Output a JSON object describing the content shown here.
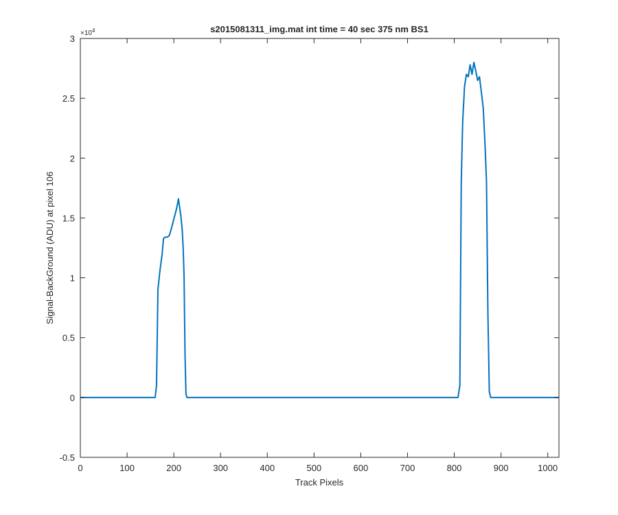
{
  "chart_data": {
    "type": "line",
    "title": "s2015081311_img.mat int time = 40 sec  375 nm BS1",
    "xlabel": "Track Pixels",
    "ylabel": "Signal-BackGround (ADU) at pixel 106",
    "y_exponent_base": "×10",
    "y_exponent_power": "4",
    "xlim": [
      0,
      1024
    ],
    "ylim": [
      -5000,
      30000
    ],
    "x_ticks": [
      0,
      100,
      200,
      300,
      400,
      500,
      600,
      700,
      800,
      900,
      1000
    ],
    "x_tick_labels": [
      "0",
      "100",
      "200",
      "300",
      "400",
      "500",
      "600",
      "700",
      "800",
      "900",
      "1000"
    ],
    "y_ticks": [
      -5000,
      0,
      5000,
      10000,
      15000,
      20000,
      25000,
      30000
    ],
    "y_tick_labels": [
      "-0.5",
      "0",
      "0.5",
      "1",
      "1.5",
      "2",
      "2.5",
      "3"
    ],
    "grid": false,
    "line_color": "#0072BD",
    "series": [
      {
        "x": [
          0,
          100,
          160,
          163,
          166,
          170,
          175,
          178,
          182,
          186,
          190,
          194,
          198,
          202,
          206,
          210,
          212,
          215,
          218,
          220,
          222,
          224,
          226,
          228,
          300,
          500,
          700,
          808,
          812,
          815,
          818,
          822,
          826,
          830,
          834,
          838,
          842,
          846,
          850,
          854,
          858,
          862,
          866,
          869,
          872,
          875,
          878,
          900,
          1024
        ],
        "y": [
          0,
          0,
          0,
          1000,
          9000,
          10500,
          12000,
          13300,
          13400,
          13400,
          13500,
          14000,
          14600,
          15200,
          15800,
          16600,
          16000,
          15200,
          14000,
          12500,
          10000,
          3500,
          300,
          0,
          0,
          0,
          0,
          0,
          1000,
          18000,
          23000,
          26000,
          27000,
          26800,
          27800,
          27000,
          28000,
          27300,
          26500,
          26800,
          25500,
          24200,
          21000,
          18000,
          7000,
          500,
          0,
          0,
          0
        ]
      }
    ]
  }
}
